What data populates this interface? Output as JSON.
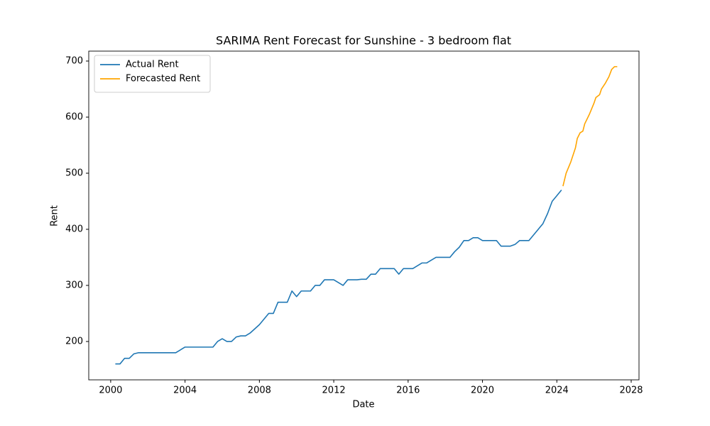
{
  "chart_data": {
    "type": "line",
    "title": "SARIMA Rent Forecast for Sunshine - 3 bedroom flat",
    "x_label": "Date",
    "y_label": "Rent",
    "xlim": [
      1998.82,
      2028.42
    ],
    "xticks": [
      2000,
      2004,
      2008,
      2012,
      2016,
      2020,
      2024,
      2028
    ],
    "ylim": [
      131.6,
      717.7
    ],
    "yticks": [
      200,
      300,
      400,
      500,
      600,
      700
    ],
    "legend": "upper left",
    "grid": false,
    "series": [
      {
        "name": "Actual Rent",
        "color": "#1f77b4",
        "x": [
          2000.25,
          2000.5,
          2000.75,
          2001,
          2001.25,
          2001.5,
          2002,
          2003,
          2003.5,
          2004,
          2005,
          2005.5,
          2005.75,
          2006,
          2006.25,
          2006.5,
          2006.75,
          2007,
          2007.25,
          2007.5,
          2008,
          2008.5,
          2008.75,
          2009,
          2009.5,
          2009.75,
          2010,
          2010.25,
          2010.75,
          2011,
          2011.25,
          2011.5,
          2012,
          2012.5,
          2012.75,
          2013.25,
          2013.5,
          2013.75,
          2014,
          2014.25,
          2014.5,
          2015,
          2015.25,
          2015.5,
          2015.75,
          2016.25,
          2016.75,
          2017,
          2017.5,
          2018,
          2018.25,
          2018.5,
          2018.75,
          2019,
          2019.25,
          2019.5,
          2019.75,
          2020,
          2020.5,
          2020.75,
          2021,
          2021.5,
          2021.75,
          2022,
          2022.5,
          2023,
          2023.25,
          2023.5,
          2023.75,
          2024,
          2024.25
        ],
        "values": [
          160,
          160,
          170,
          170,
          178,
          180,
          180,
          180,
          180,
          190,
          190,
          190,
          200,
          205,
          200,
          200,
          208,
          210,
          210,
          215,
          230,
          250,
          250,
          270,
          270,
          290,
          280,
          290,
          290,
          300,
          300,
          310,
          310,
          300,
          310,
          310,
          311,
          311,
          320,
          320,
          330,
          330,
          330,
          320,
          330,
          330,
          340,
          340,
          350,
          350,
          350,
          360,
          368,
          380,
          380,
          385,
          385,
          380,
          380,
          380,
          370,
          370,
          373,
          380,
          380,
          400,
          410,
          428,
          450,
          460,
          470
        ]
      },
      {
        "name": "Forecasted Rent",
        "color": "#ffa500",
        "x": [
          2024.33,
          2024.5,
          2024.75,
          2025,
          2025.1,
          2025.25,
          2025.4,
          2025.5,
          2025.75,
          2026,
          2026.1,
          2026.3,
          2026.4,
          2026.6,
          2026.8,
          2026.95,
          2027.1,
          2027.25
        ],
        "values": [
          477,
          500,
          520,
          545,
          562,
          572,
          575,
          588,
          605,
          625,
          635,
          640,
          650,
          660,
          672,
          685,
          690,
          690
        ]
      }
    ]
  }
}
